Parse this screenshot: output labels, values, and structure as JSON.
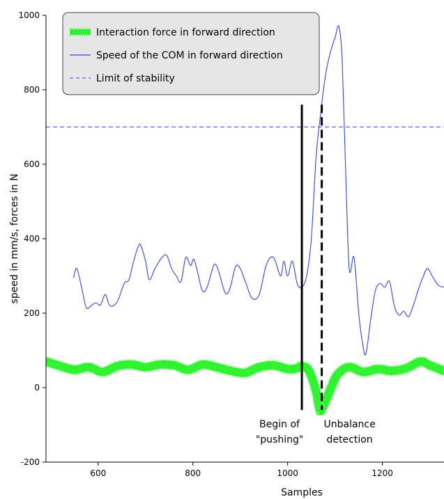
{
  "chart_data": {
    "type": "line",
    "xlabel": "Samples",
    "ylabel": "speed in mm/s, forces in N",
    "xlim": [
      490,
      1330
    ],
    "ylim": [
      -200,
      1000
    ],
    "xticks": [
      600,
      800,
      1000,
      1200
    ],
    "yticks": [
      -200,
      0,
      200,
      400,
      600,
      800,
      1000
    ],
    "grid": false,
    "legend_position": "top-left",
    "legend": [
      {
        "label": "Interaction force in forward direction",
        "color": "#22ee22",
        "style": "thick-hatched"
      },
      {
        "label": "Speed of the COM in forward direction",
        "color": "#3344dd",
        "style": "solid"
      },
      {
        "label": "Limit of stability",
        "color": "#5566ee",
        "style": "dashed"
      }
    ],
    "series": [
      {
        "name": "Interaction force in forward direction",
        "color": "#22ee22",
        "x": [
          490,
          520,
          550,
          580,
          610,
          640,
          670,
          700,
          730,
          760,
          790,
          820,
          850,
          880,
          910,
          940,
          970,
          1000,
          1020,
          1030,
          1045,
          1060,
          1068,
          1075,
          1090,
          1105,
          1130,
          1160,
          1190,
          1220,
          1250,
          1280,
          1300,
          1330
        ],
        "y": [
          70,
          58,
          48,
          55,
          42,
          58,
          62,
          55,
          62,
          60,
          48,
          62,
          55,
          45,
          40,
          55,
          60,
          50,
          52,
          58,
          45,
          -10,
          -60,
          -50,
          -5,
          35,
          55,
          42,
          50,
          45,
          52,
          70,
          60,
          45
        ]
      },
      {
        "name": "Speed of the COM in forward direction",
        "color": "#3344dd",
        "x": [
          548,
          555,
          565,
          575,
          585,
          595,
          605,
          615,
          625,
          640,
          655,
          665,
          675,
          685,
          690,
          700,
          708,
          720,
          735,
          745,
          755,
          765,
          775,
          785,
          795,
          802,
          810,
          820,
          830,
          845,
          855,
          868,
          878,
          890,
          900,
          912,
          925,
          940,
          955,
          970,
          985,
          992,
          1000,
          1010,
          1020,
          1030,
          1040,
          1050,
          1060,
          1070,
          1080,
          1090,
          1100,
          1108,
          1115,
          1122,
          1130,
          1140,
          1150,
          1158,
          1165,
          1175,
          1185,
          1195,
          1205,
          1215,
          1225,
          1235,
          1245,
          1255,
          1265,
          1275,
          1285,
          1295,
          1305,
          1318,
          1330
        ],
        "y": [
          295,
          320,
          270,
          215,
          220,
          228,
          222,
          250,
          220,
          230,
          280,
          290,
          340,
          380,
          382,
          340,
          290,
          320,
          350,
          355,
          320,
          300,
          285,
          350,
          328,
          345,
          310,
          260,
          270,
          330,
          310,
          255,
          265,
          325,
          320,
          280,
          240,
          250,
          330,
          350,
          300,
          340,
          300,
          340,
          280,
          270,
          300,
          400,
          620,
          740,
          840,
          900,
          940,
          970,
          880,
          600,
          320,
          350,
          200,
          120,
          90,
          180,
          260,
          280,
          270,
          285,
          220,
          195,
          205,
          190,
          220,
          260,
          295,
          320,
          300,
          275,
          270
        ]
      },
      {
        "name": "Limit of stability",
        "color": "#5566ee",
        "x": [
          490,
          1330
        ],
        "y": [
          700,
          700
        ]
      }
    ],
    "annotations": [
      {
        "kind": "vertical-line",
        "x": 1030,
        "style": "solid",
        "color": "#000000",
        "y_range": [
          -60,
          760
        ],
        "text": [
          "Begin of",
          "\"pushing\""
        ]
      },
      {
        "kind": "vertical-line",
        "x": 1072,
        "style": "dashed",
        "color": "#000000",
        "y_range": [
          -60,
          760
        ],
        "text": [
          "Unbalance",
          "detection"
        ]
      }
    ]
  }
}
